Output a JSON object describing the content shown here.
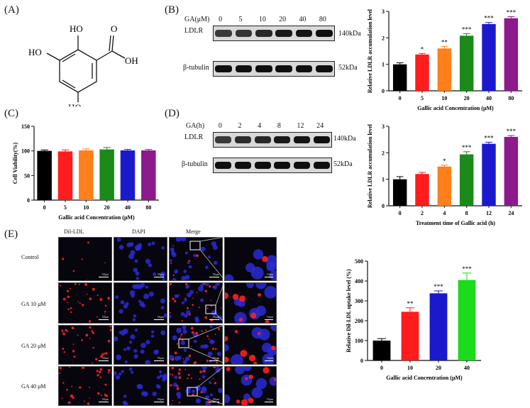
{
  "panels": {
    "A": {
      "label": "(A)",
      "structure_labels": [
        "HO",
        "HO",
        "HO",
        "O",
        "OH"
      ]
    },
    "B": {
      "label": "(B)",
      "blot": {
        "condition_label": "GA(μM)",
        "conditions": [
          "0",
          "5",
          "10",
          "20",
          "40",
          "80"
        ],
        "rows": [
          {
            "name": "LDLR",
            "size": "140kDa",
            "intensity": [
              0.55,
              0.6,
              0.75,
              0.9,
              0.95,
              1.0
            ]
          },
          {
            "name": "β-tubulin",
            "size": "52kDa",
            "intensity": [
              1,
              1,
              1,
              1,
              1,
              1
            ]
          }
        ]
      },
      "chart_data": {
        "type": "bar",
        "categories": [
          "0",
          "5",
          "10",
          "20",
          "40",
          "80"
        ],
        "values": [
          1.0,
          1.37,
          1.6,
          2.08,
          2.52,
          2.74
        ],
        "errors": [
          0.06,
          0.04,
          0.08,
          0.08,
          0.06,
          0.06
        ],
        "significance": [
          "",
          "*",
          "**",
          "***",
          "***",
          "***"
        ],
        "colors": [
          "#000000",
          "#ff1c1c",
          "#ff7f1a",
          "#1a8a1a",
          "#1a1acc",
          "#8c1a8c"
        ],
        "xlabel": "Gallic acid Concentration (μM)",
        "ylabel": "Relative LDLR accumulation level",
        "ylim": [
          0,
          3
        ],
        "yticks": [
          "0",
          "1",
          "2",
          "3"
        ]
      }
    },
    "C": {
      "label": "(C)",
      "chart_data": {
        "type": "bar",
        "categories": [
          "0",
          "5",
          "10",
          "20",
          "40",
          "80"
        ],
        "values": [
          100,
          99,
          101,
          103,
          101,
          101
        ],
        "errors": [
          2,
          3,
          3,
          4,
          2,
          2
        ],
        "significance": [
          "",
          "",
          "",
          "",
          "",
          ""
        ],
        "colors": [
          "#000000",
          "#ff1c1c",
          "#ff7f1a",
          "#1a8a1a",
          "#1a1acc",
          "#8c1a8c"
        ],
        "xlabel": "Gallic acid Concentration (μM)",
        "ylabel": "Cell Viability(%)",
        "ylim": [
          0,
          150
        ],
        "yticks": [
          "0",
          "50",
          "100",
          "150"
        ]
      }
    },
    "D": {
      "label": "(D)",
      "blot": {
        "condition_label": "GA(h)",
        "conditions": [
          "0",
          "2",
          "4",
          "8",
          "12",
          "24"
        ],
        "rows": [
          {
            "name": "LDLR",
            "size": "140kDa",
            "intensity": [
              0.55,
              0.7,
              0.75,
              0.9,
              0.95,
              1.0
            ]
          },
          {
            "name": "β-tubulin",
            "size": "52kDa",
            "intensity": [
              1,
              1,
              1,
              1,
              1,
              1
            ]
          }
        ]
      },
      "chart_data": {
        "type": "bar",
        "categories": [
          "0",
          "2",
          "4",
          "8",
          "12",
          "24"
        ],
        "values": [
          1.0,
          1.2,
          1.48,
          1.94,
          2.34,
          2.6
        ],
        "errors": [
          0.1,
          0.06,
          0.05,
          0.1,
          0.06,
          0.05
        ],
        "significance": [
          "",
          "",
          "*",
          "***",
          "***",
          "***"
        ],
        "colors": [
          "#000000",
          "#ff1c1c",
          "#ff7f1a",
          "#1a8a1a",
          "#1a1acc",
          "#8c1a8c"
        ],
        "xlabel": "Treatment time of Gallic acid (h)",
        "ylabel": "Relative LDLR accumulation level",
        "ylim": [
          0,
          3
        ],
        "yticks": [
          "0",
          "1",
          "2",
          "3"
        ]
      }
    },
    "E": {
      "label": "(E)",
      "column_headers": [
        "Dil-LDL",
        "DAPI",
        "Merge"
      ],
      "row_labels": [
        "Control",
        "GA 10 μM",
        "GA 20 μM",
        "GA 40 μM"
      ],
      "red_density": [
        0.1,
        0.5,
        0.55,
        0.6
      ],
      "scale_main": "50μm",
      "scale_zoom": "10μm",
      "chart_data": {
        "type": "bar",
        "categories": [
          "0",
          "10",
          "20",
          "40"
        ],
        "values": [
          100,
          245,
          338,
          405
        ],
        "errors": [
          10,
          20,
          12,
          35
        ],
        "significance": [
          "",
          "**",
          "***",
          "***"
        ],
        "colors": [
          "#000000",
          "#ff1c1c",
          "#1a1acc",
          "#1adc1a"
        ],
        "xlabel": "Gallic acid Concentration (μM)",
        "ylabel": "Relative Dil-LDL uptake level (%)",
        "ylim": [
          0,
          500
        ],
        "yticks": [
          "0",
          "100",
          "200",
          "300",
          "400",
          "500"
        ]
      }
    }
  }
}
